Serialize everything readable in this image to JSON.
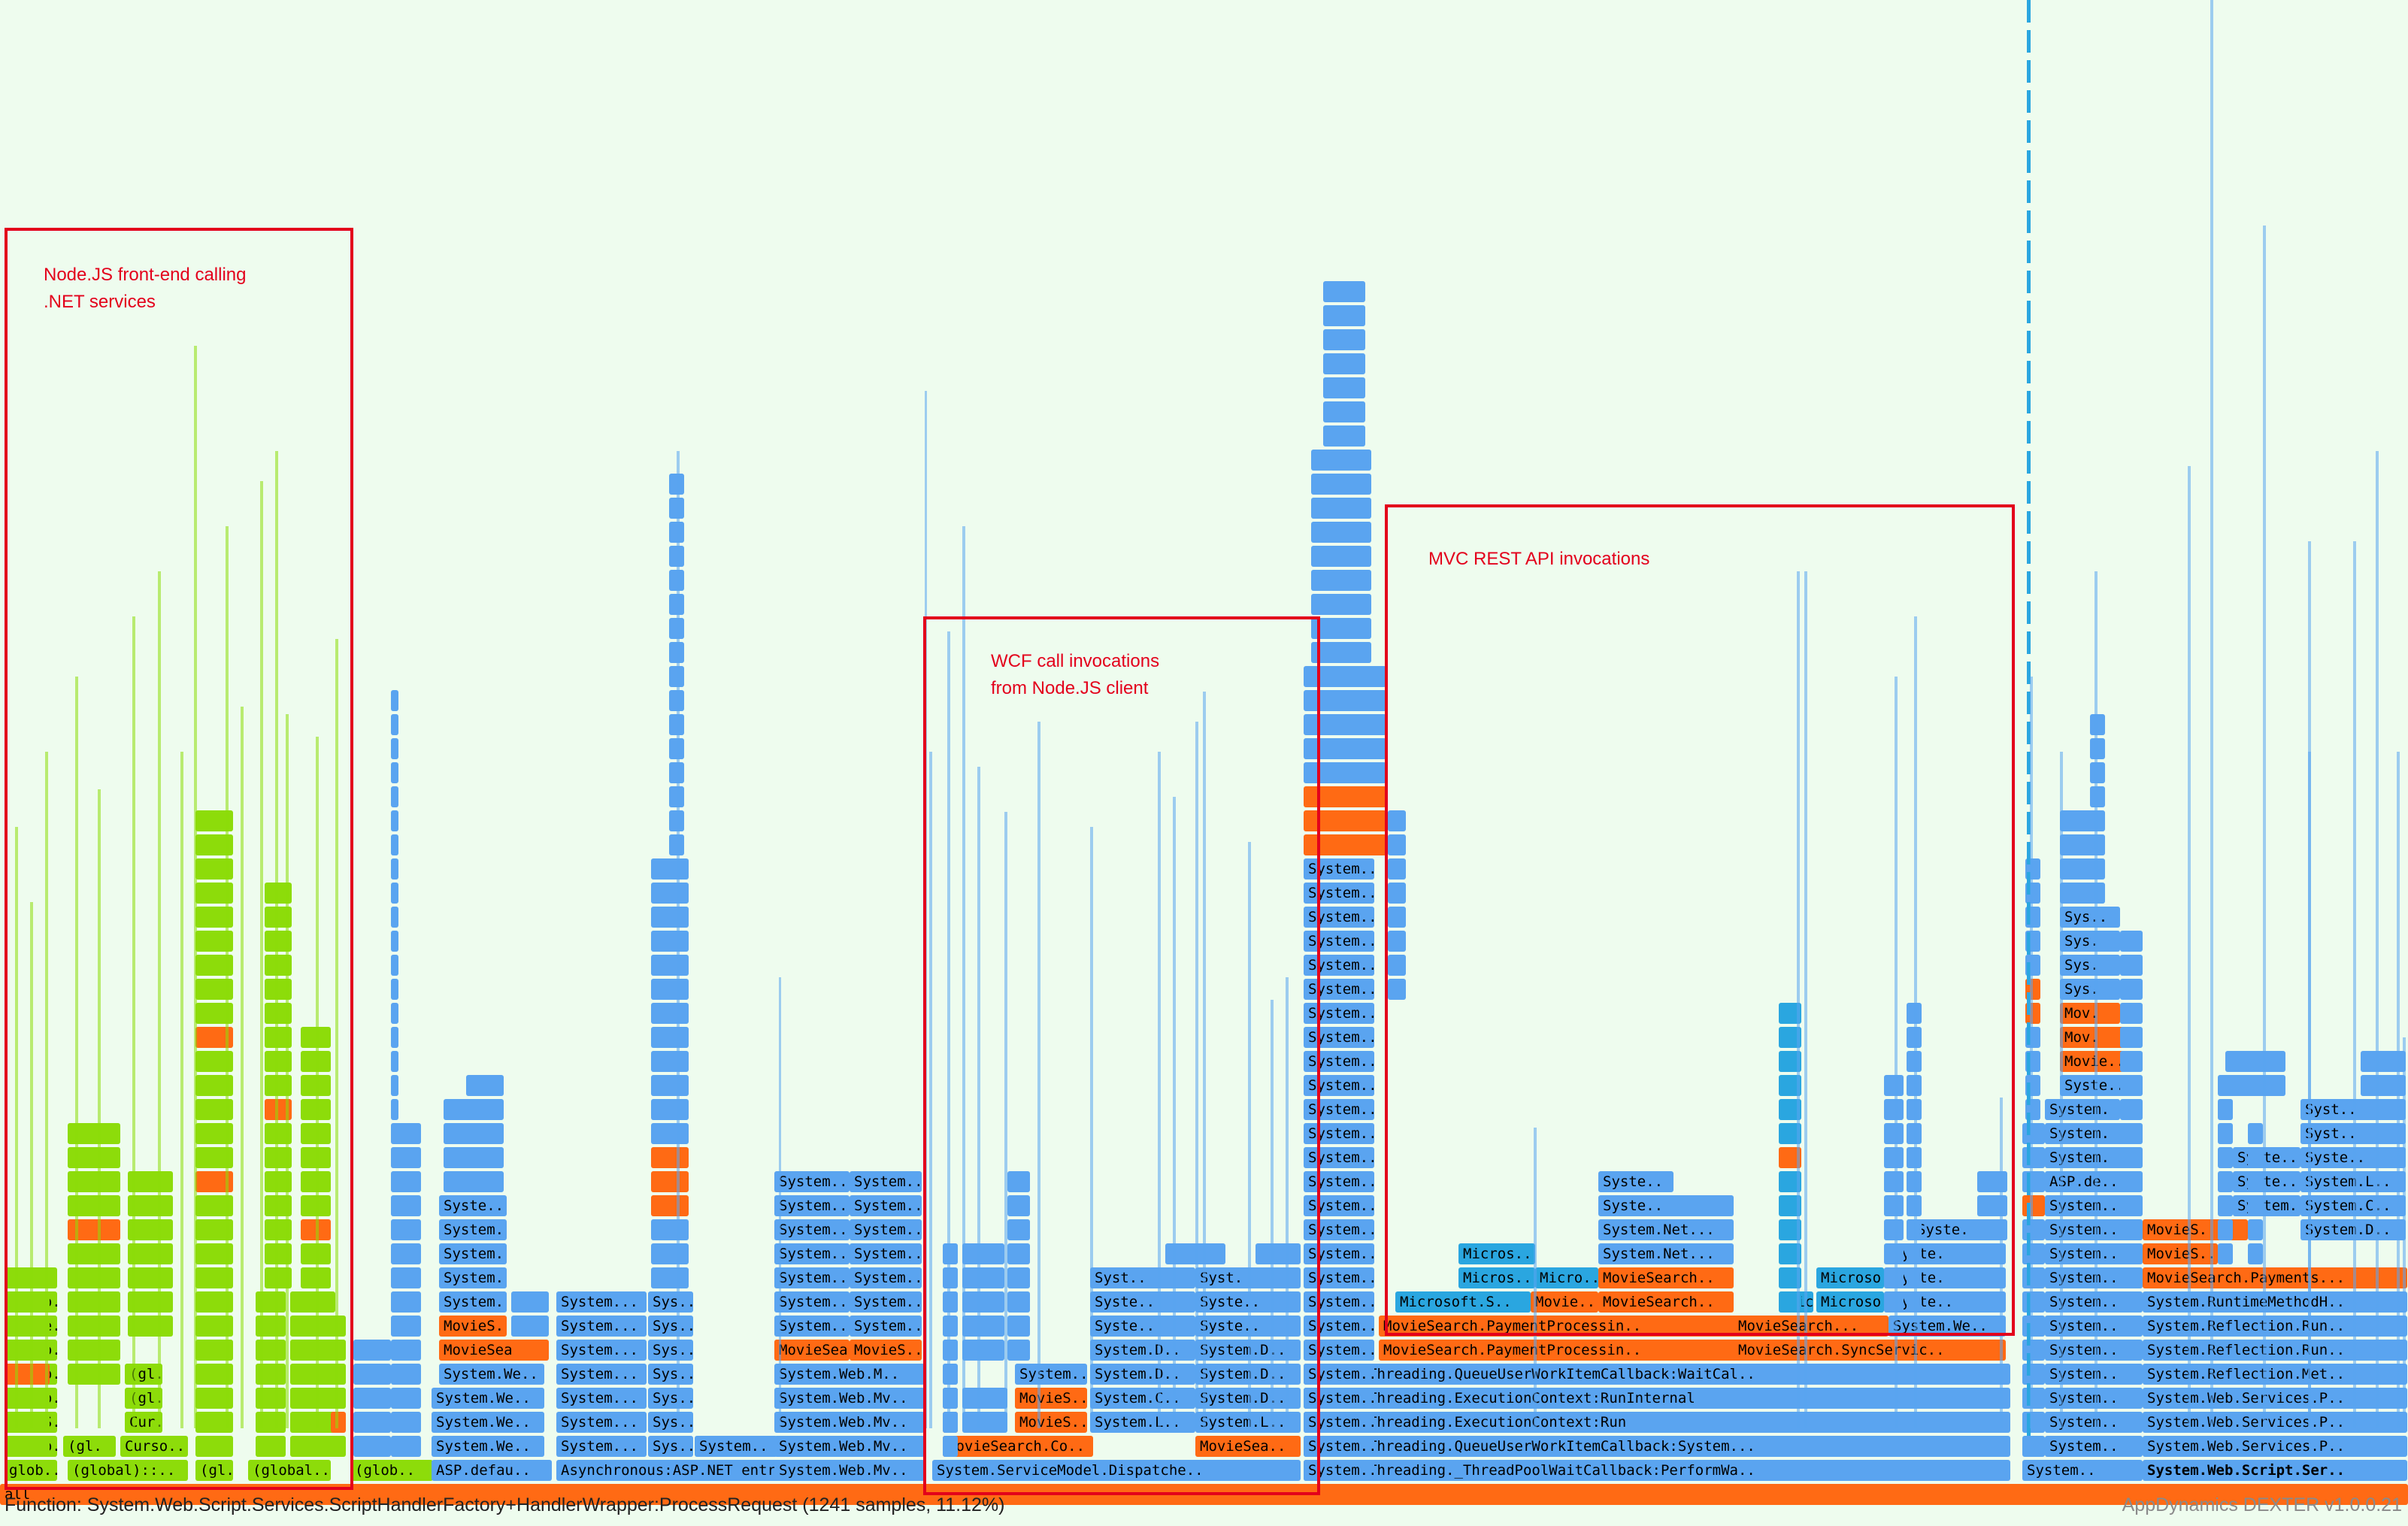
{
  "chart_data": {
    "type": "flamegraph",
    "title": "",
    "palette": {
      "js": "#8ddc0a",
      "net": "#5aa4f0",
      "app": "#ff6a14",
      "ext": "#2aa6e0",
      "root": "#ff6a14",
      "background": "#eefcee"
    },
    "root_label": "all",
    "frames": [
      {
        "label": "glob..",
        "kind": "js"
      },
      {
        "label": "(global)::..",
        "kind": "js"
      },
      {
        "label": "(gl.",
        "kind": "js"
      },
      {
        "label": "(global..",
        "kind": "js"
      },
      {
        "label": "(glob..",
        "kind": "js"
      },
      {
        "label": "Curso..",
        "kind": "js"
      },
      {
        "label": "SendS..",
        "kind": "js"
      },
      {
        "label": "Cur.",
        "kind": "js"
      },
      {
        "label": "Route..",
        "kind": "js"
      },
      {
        "label": "glo.",
        "kind": "js"
      },
      {
        "label": "ASP.defau..",
        "kind": "net"
      },
      {
        "label": "System.We..",
        "kind": "net"
      },
      {
        "label": "System...",
        "kind": "net"
      },
      {
        "label": "MovieS.",
        "kind": "app"
      },
      {
        "label": "MovieSear..",
        "kind": "app"
      },
      {
        "label": "Syste..",
        "kind": "net"
      },
      {
        "label": "Asynchronous:ASP.NET entry",
        "kind": "net"
      },
      {
        "label": "Sys..",
        "kind": "net"
      },
      {
        "label": "System..",
        "kind": "net"
      },
      {
        "label": "System.Web.Mv..",
        "kind": "net"
      },
      {
        "label": "System.Web.M..",
        "kind": "net"
      },
      {
        "label": "MovieS..",
        "kind": "app"
      },
      {
        "label": "MovieSearch..",
        "kind": "app"
      },
      {
        "label": "System.ServiceModel.Dispatche..",
        "kind": "net"
      },
      {
        "label": "MovieSearch.Co..",
        "kind": "app"
      },
      {
        "label": "MovieSea..",
        "kind": "app"
      },
      {
        "label": "System.L..",
        "kind": "net"
      },
      {
        "label": "System.C..",
        "kind": "net"
      },
      {
        "label": "System.D..",
        "kind": "net"
      },
      {
        "label": "Syst..",
        "kind": "net"
      },
      {
        "label": "Syst.",
        "kind": "net"
      },
      {
        "label": "System.Threading._ThreadPoolWaitCallback:PerformWa..",
        "kind": "net"
      },
      {
        "label": "System.Threading.QueueUserWorkItemCallback:System...",
        "kind": "net"
      },
      {
        "label": "System.Threading.ExecutionContext:Run",
        "kind": "net"
      },
      {
        "label": "System.Threading.ExecutionContext:RunInternal",
        "kind": "net"
      },
      {
        "label": "System.Threading.QueueUserWorkItemCallback:WaitCal..",
        "kind": "net"
      },
      {
        "label": "MovieSearch.PaymentProcessin..",
        "kind": "app"
      },
      {
        "label": "MovieSearch.SyncServic..",
        "kind": "app"
      },
      {
        "label": "MovieSearch...",
        "kind": "app"
      },
      {
        "label": "Microsoft.S..",
        "kind": "ext"
      },
      {
        "label": "Movie..",
        "kind": "app"
      },
      {
        "label": "Micros..",
        "kind": "ext"
      },
      {
        "label": "Micro..",
        "kind": "ext"
      },
      {
        "label": "System.Net...",
        "kind": "net"
      },
      {
        "label": "Syste.",
        "kind": "net"
      },
      {
        "label": "Microso..",
        "kind": "ext"
      },
      {
        "label": "System.Web.Script.Ser..",
        "kind": "net"
      },
      {
        "label": "System.Web.Services.P..",
        "kind": "net"
      },
      {
        "label": "System.Reflection.Met..",
        "kind": "net"
      },
      {
        "label": "System.Reflection.Run..",
        "kind": "net"
      },
      {
        "label": "System.RuntimeMethodH..",
        "kind": "net"
      },
      {
        "label": "MovieSearch.Payments...",
        "kind": "app"
      },
      {
        "label": "System.L..",
        "kind": "net"
      },
      {
        "label": "System.C..",
        "kind": "net"
      },
      {
        "label": "System.D..",
        "kind": "net"
      },
      {
        "label": "Syste..",
        "kind": "net"
      },
      {
        "label": "Syst..",
        "kind": "net"
      },
      {
        "label": "System.",
        "kind": "net"
      },
      {
        "label": "ASP.de..",
        "kind": "net"
      },
      {
        "label": "Movie..",
        "kind": "app"
      },
      {
        "label": "Mov.",
        "kind": "app"
      },
      {
        "label": "Sys.",
        "kind": "net"
      },
      {
        "label": "Sys..",
        "kind": "net"
      },
      {
        "label": "MovieS..",
        "kind": "app"
      },
      {
        "label": "Syste..",
        "kind": "net"
      },
      {
        "label": "System..",
        "kind": "net"
      },
      {
        "label": "Syst..",
        "kind": "net"
      }
    ]
  },
  "annotations": [
    {
      "label": "Node.JS front-end calling\n.NET services"
    },
    {
      "label": "WCF call invocations\nfrom Node.JS client"
    },
    {
      "label": "MVC REST API invocations"
    }
  ],
  "status": {
    "function_text": "Function: System.Web.Script.Services.ScriptHandlerFactory+HandlerWrapper:ProcessRequest (1241 samples, 11.12%)",
    "brand": "AppDynamics DEXTER v1.0.0.21"
  }
}
